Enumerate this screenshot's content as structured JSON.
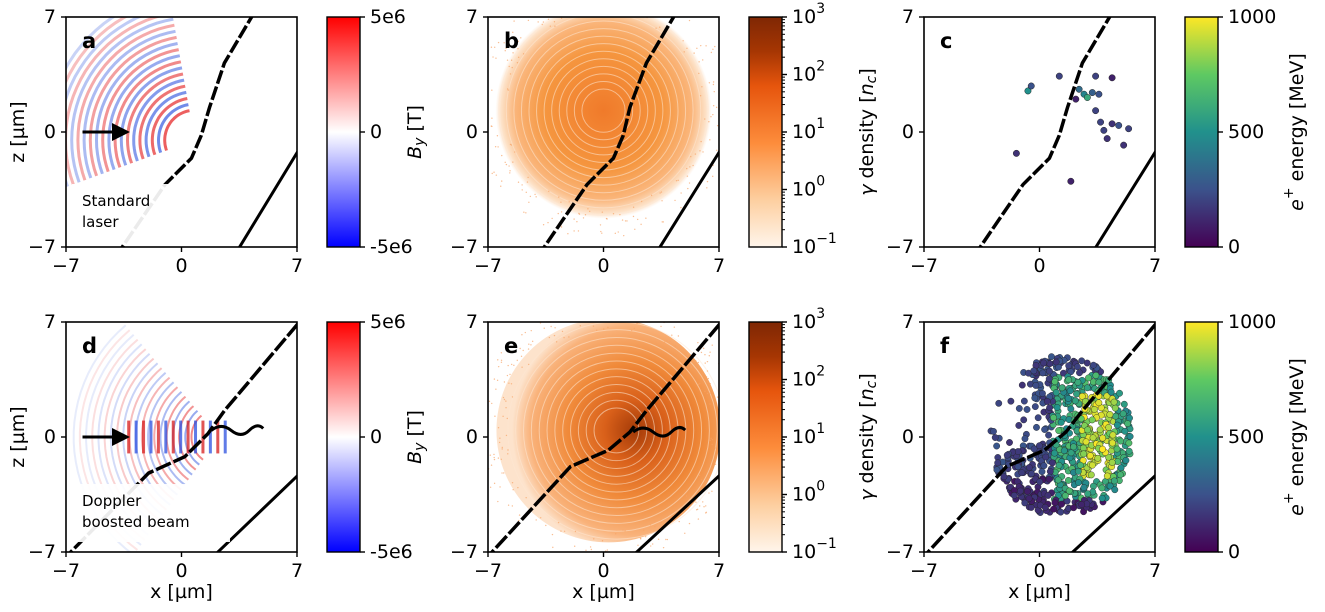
{
  "figure": {
    "panels": [
      {
        "id": "a",
        "label": "a",
        "kind": "bfield",
        "annotation": [
          "Standard",
          "laser"
        ],
        "arrow": true
      },
      {
        "id": "b",
        "label": "b",
        "kind": "gamma"
      },
      {
        "id": "c",
        "label": "c",
        "kind": "positron"
      },
      {
        "id": "d",
        "label": "d",
        "kind": "bfield",
        "annotation": [
          "Doppler",
          "boosted beam"
        ],
        "arrow": true
      },
      {
        "id": "e",
        "label": "e",
        "kind": "gamma"
      },
      {
        "id": "f",
        "label": "f",
        "kind": "positron"
      }
    ],
    "axes": {
      "xlabel": "x [µm]",
      "ylabel": "z [µm]",
      "xticks": [
        "−7",
        "0",
        "7"
      ],
      "yticks": [
        "7",
        "0",
        "−7"
      ],
      "xlim": [
        -7,
        7
      ],
      "ylim": [
        -7,
        7
      ]
    },
    "colorbars": {
      "bfield": {
        "label_html": "B_y [T]",
        "ticks": [
          "5e6",
          "0",
          "-5e6"
        ],
        "range": [
          -5000000,
          5000000
        ],
        "colors": [
          "#0000ff",
          "#ffffff",
          "#ff0000"
        ]
      },
      "gamma": {
        "label": "γ density [n_c]",
        "ticks": [
          "10^3",
          "10^2",
          "10^1",
          "10^0",
          "10^-1"
        ],
        "range": [
          0.1,
          1000
        ],
        "scale": "log",
        "colors": [
          "#fff5eb",
          "#fd8d3c",
          "#7f2704"
        ]
      },
      "positron": {
        "label": "e⁺ energy [MeV]",
        "ticks": [
          "1000",
          "500",
          "0"
        ],
        "range": [
          0,
          1000
        ],
        "colors": [
          "#440154",
          "#21918c",
          "#fde725"
        ]
      }
    }
  },
  "chart_data": [
    {
      "type": "heatmap",
      "panel": "a",
      "quantity": "B_y [T]",
      "xlim": [
        -7,
        7
      ],
      "ylim": [
        -7,
        7
      ],
      "clim": [
        -5000000,
        5000000
      ],
      "note_text": [
        "Standard",
        "laser"
      ]
    },
    {
      "type": "heatmap",
      "panel": "b",
      "quantity": "γ density [n_c]",
      "xlim": [
        -7,
        7
      ],
      "ylim": [
        -7,
        7
      ],
      "clim": [
        0.1,
        1000
      ],
      "scale": "log"
    },
    {
      "type": "scatter",
      "panel": "c",
      "quantity": "e⁺ energy [MeV]",
      "xlim": [
        -7,
        7
      ],
      "ylim": [
        -7,
        7
      ],
      "clim": [
        0,
        1000
      ],
      "points": [
        [
          -1.4,
          -1.3,
          150
        ],
        [
          -0.7,
          2.5,
          500
        ],
        [
          -0.5,
          2.8,
          250
        ],
        [
          1.2,
          3.4,
          200
        ],
        [
          2.4,
          2.6,
          350
        ],
        [
          2.7,
          2.3,
          450
        ],
        [
          2.9,
          2.1,
          600
        ],
        [
          3.4,
          3.4,
          200
        ],
        [
          3.2,
          2.4,
          300
        ],
        [
          3.6,
          2.3,
          250
        ],
        [
          3.4,
          1.3,
          200
        ],
        [
          2.2,
          2.0,
          100
        ],
        [
          3.7,
          0.6,
          200
        ],
        [
          4.4,
          0.5,
          150
        ],
        [
          3.9,
          0.1,
          200
        ],
        [
          4.8,
          0.4,
          250
        ],
        [
          5.4,
          0.2,
          200
        ],
        [
          4.1,
          -0.4,
          150
        ],
        [
          5.1,
          -0.8,
          150
        ],
        [
          1.9,
          -3.0,
          100
        ],
        [
          4.4,
          3.3,
          100
        ]
      ]
    },
    {
      "type": "heatmap",
      "panel": "d",
      "quantity": "B_y [T]",
      "xlim": [
        -7,
        7
      ],
      "ylim": [
        -7,
        7
      ],
      "clim": [
        -5000000,
        5000000
      ],
      "note_text": [
        "Doppler",
        "boosted beam"
      ]
    },
    {
      "type": "heatmap",
      "panel": "e",
      "quantity": "γ density [n_c]",
      "xlim": [
        -7,
        7
      ],
      "ylim": [
        -7,
        7
      ],
      "clim": [
        0.1,
        1000
      ],
      "scale": "log"
    },
    {
      "type": "scatter",
      "panel": "f",
      "quantity": "e⁺ energy [MeV]",
      "xlim": [
        -7,
        7
      ],
      "ylim": [
        -7,
        7
      ],
      "clim": [
        0,
        1000
      ],
      "cloud": {
        "center": [
          1.3,
          0.0
        ],
        "x_range": [
          -3.2,
          5.8
        ],
        "z_range": [
          -4.6,
          5.2
        ],
        "high_energy_x": [
          2.5,
          4.6
        ]
      }
    }
  ]
}
